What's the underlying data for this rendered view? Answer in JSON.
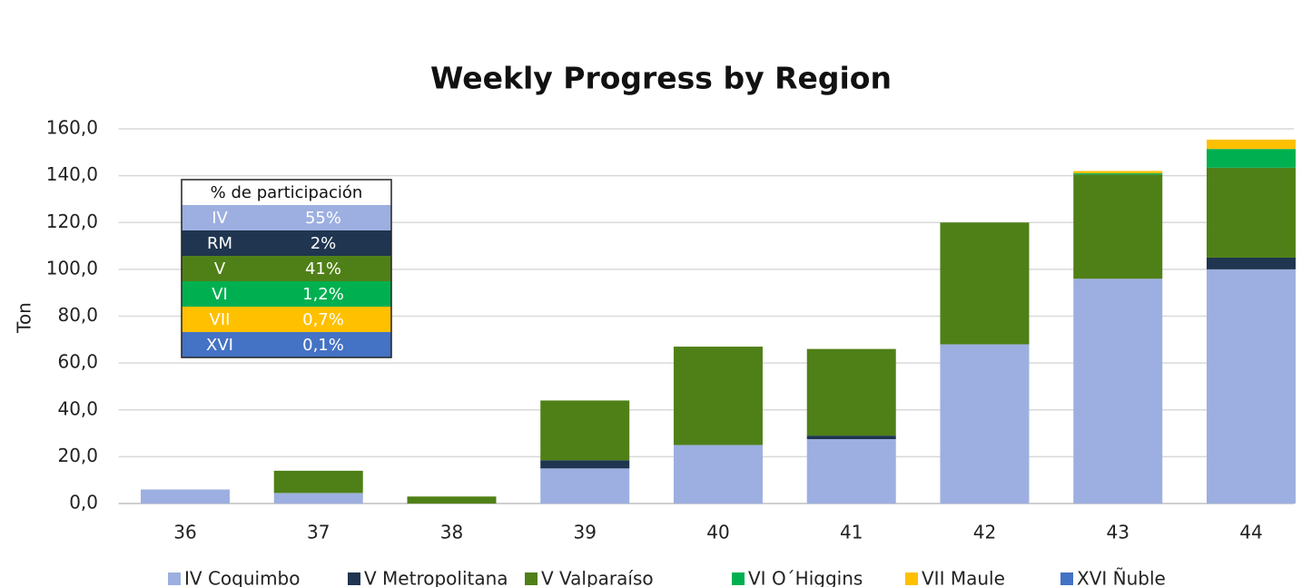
{
  "chart_data": {
    "type": "stacked_bar",
    "title": "Weekly Progress by Region",
    "y_label": "Ton",
    "categories": [
      "36",
      "37",
      "38",
      "39",
      "40",
      "41",
      "42",
      "43",
      "44"
    ],
    "series": [
      {
        "name": "IV Coquimbo",
        "color": "#9dafe0",
        "values": [
          6,
          4.5,
          0,
          15,
          25,
          27.5,
          68,
          96,
          100
        ]
      },
      {
        "name": "V Metropolitana",
        "color": "#1f3550",
        "values": [
          0,
          0,
          0,
          3.5,
          0,
          1.5,
          0,
          0,
          5
        ]
      },
      {
        "name": "V Valparaíso",
        "color": "#4f8017",
        "values": [
          0,
          9.5,
          3,
          25.5,
          42,
          37,
          52,
          44.5,
          38.4
        ]
      },
      {
        "name": "VI O´Higgins",
        "color": "#00b050",
        "values": [
          0,
          0,
          0,
          0,
          0,
          0,
          0,
          0.5,
          8
        ]
      },
      {
        "name": "VII Maule",
        "color": "#ffc000",
        "values": [
          0,
          0,
          0,
          0,
          0,
          0,
          0,
          1,
          4
        ]
      },
      {
        "name": "XVI Ñuble",
        "color": "#4472c4",
        "values": [
          0,
          0,
          0,
          0,
          0,
          0,
          0,
          0,
          0
        ]
      }
    ],
    "ylim": [
      0,
      160
    ],
    "yticks": [
      {
        "value": 0,
        "label": "0,0"
      },
      {
        "value": 20,
        "label": "20,0"
      },
      {
        "value": 40,
        "label": "40,0"
      },
      {
        "value": 60,
        "label": "60,0"
      },
      {
        "value": 80,
        "label": "80,0"
      },
      {
        "value": 100,
        "label": "100,0"
      },
      {
        "value": 120,
        "label": "120,0"
      },
      {
        "value": 140,
        "label": "140,0"
      },
      {
        "value": 160,
        "label": "160,0"
      }
    ],
    "grid": true,
    "legend": "bottom"
  },
  "table": {
    "header": "% de participación",
    "rows": [
      [
        "IV",
        "55%"
      ],
      [
        "RM",
        "2%"
      ],
      [
        "V",
        "41%"
      ],
      [
        "VI",
        "1,2%"
      ],
      [
        "VII",
        "0,7%"
      ],
      [
        "XVI",
        "0,1%"
      ]
    ]
  }
}
